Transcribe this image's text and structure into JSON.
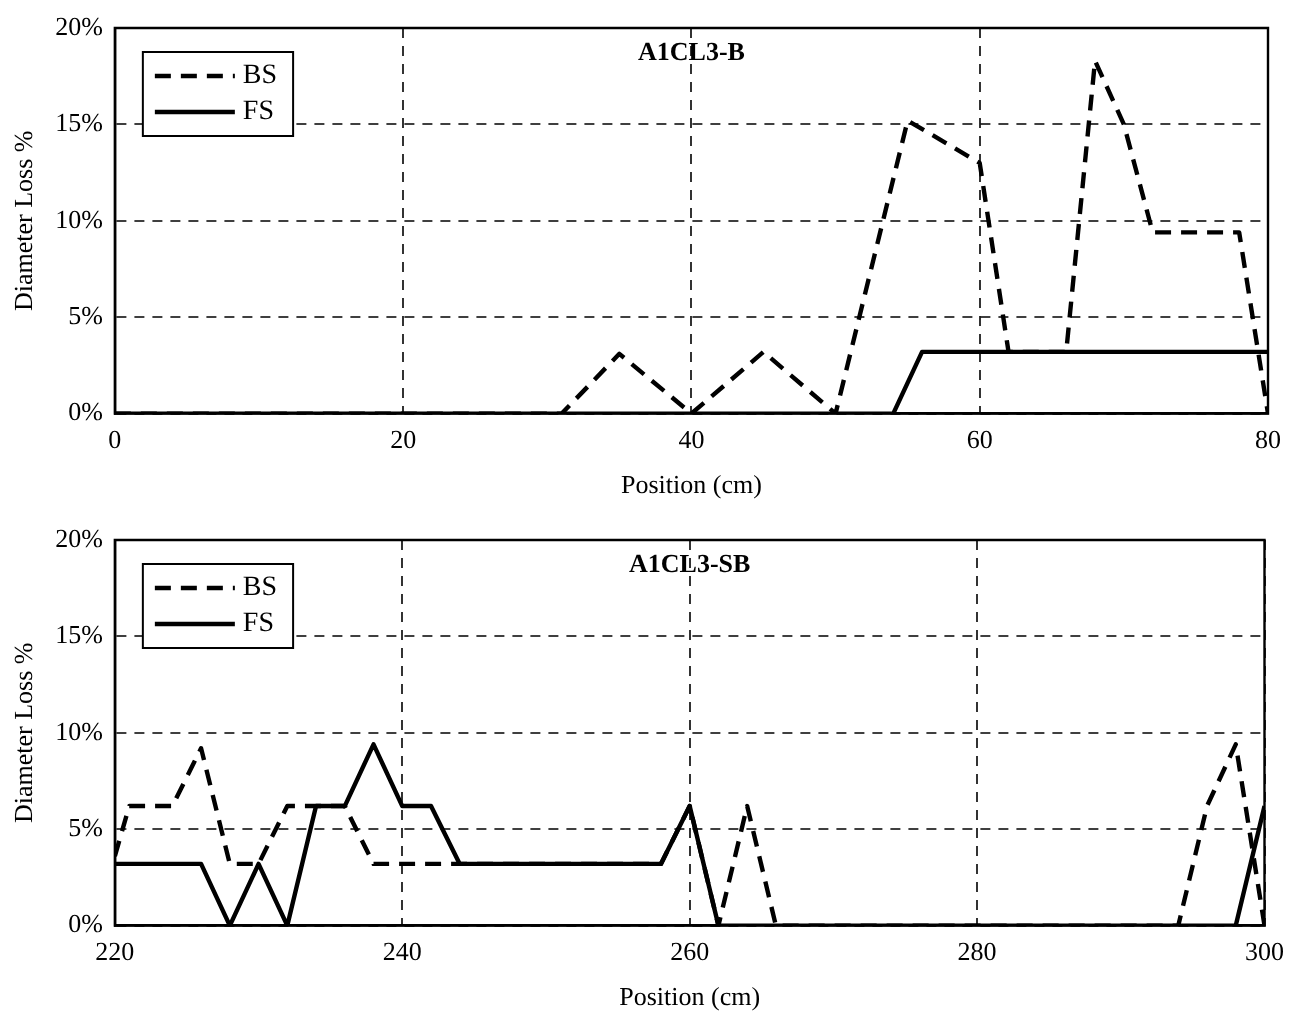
{
  "chart_data": [
    {
      "type": "line",
      "title": "A1CL3-B",
      "xlabel": "Position (cm)",
      "ylabel": "Diameter Loss %",
      "xlim": [
        0,
        80
      ],
      "xticks": [
        0,
        20,
        40,
        60,
        80
      ],
      "ylim": [
        0,
        20
      ],
      "yticks": [
        {
          "value": 0,
          "label": "0%"
        },
        {
          "value": 5,
          "label": "5%"
        },
        {
          "value": 10,
          "label": "10%"
        },
        {
          "value": 15,
          "label": "15%"
        },
        {
          "value": 20,
          "label": "20%"
        }
      ],
      "grid": true,
      "legend": "top left",
      "marker": "none",
      "series": [
        {
          "name": "BS",
          "color": "#000000",
          "line_style": "dashed",
          "x": [
            0,
            31,
            35,
            40,
            45,
            50,
            55,
            60,
            62,
            66,
            68,
            70,
            72,
            78,
            80
          ],
          "values": [
            0,
            0,
            3.1,
            0,
            3.2,
            0,
            15.2,
            13,
            3.2,
            3.2,
            18.3,
            15,
            9.4,
            9.4,
            0
          ]
        },
        {
          "name": "FS",
          "color": "#000000",
          "line_style": "solid",
          "x": [
            0,
            54,
            56,
            80
          ],
          "values": [
            0,
            0,
            3.2,
            3.2
          ]
        }
      ]
    },
    {
      "type": "line",
      "title": "A1CL3-SB",
      "xlabel": "Position (cm)",
      "ylabel": "Diameter Loss %",
      "xlim": [
        220,
        300
      ],
      "xticks": [
        220,
        240,
        260,
        280,
        300
      ],
      "ylim": [
        0,
        20
      ],
      "yticks": [
        {
          "value": 0,
          "label": "0%"
        },
        {
          "value": 5,
          "label": "5%"
        },
        {
          "value": 10,
          "label": "10%"
        },
        {
          "value": 15,
          "label": "15%"
        },
        {
          "value": 20,
          "label": "20%"
        }
      ],
      "grid": true,
      "legend": "top left",
      "marker": "none",
      "series": [
        {
          "name": "BS",
          "color": "#000000",
          "line_style": "dashed",
          "x": [
            220,
            221,
            223,
            224,
            226,
            228,
            230,
            232,
            236,
            238,
            244,
            258,
            260,
            262,
            264,
            266,
            294,
            296,
            298,
            300
          ],
          "values": [
            3.6,
            6.2,
            6.2,
            6.2,
            9.2,
            3.2,
            3.2,
            6.2,
            6.2,
            3.2,
            3.2,
            3.2,
            6.2,
            0,
            6.2,
            0,
            0,
            6.2,
            9.4,
            0
          ]
        },
        {
          "name": "FS",
          "color": "#000000",
          "line_style": "solid",
          "x": [
            220,
            226,
            228,
            230,
            232,
            234,
            236,
            238,
            240,
            242,
            244,
            258,
            260,
            262,
            298,
            300
          ],
          "values": [
            3.2,
            3.2,
            0,
            3.2,
            0,
            6.2,
            6.2,
            9.4,
            6.2,
            6.2,
            3.2,
            3.2,
            6.2,
            0,
            0,
            6.2
          ]
        }
      ]
    }
  ]
}
